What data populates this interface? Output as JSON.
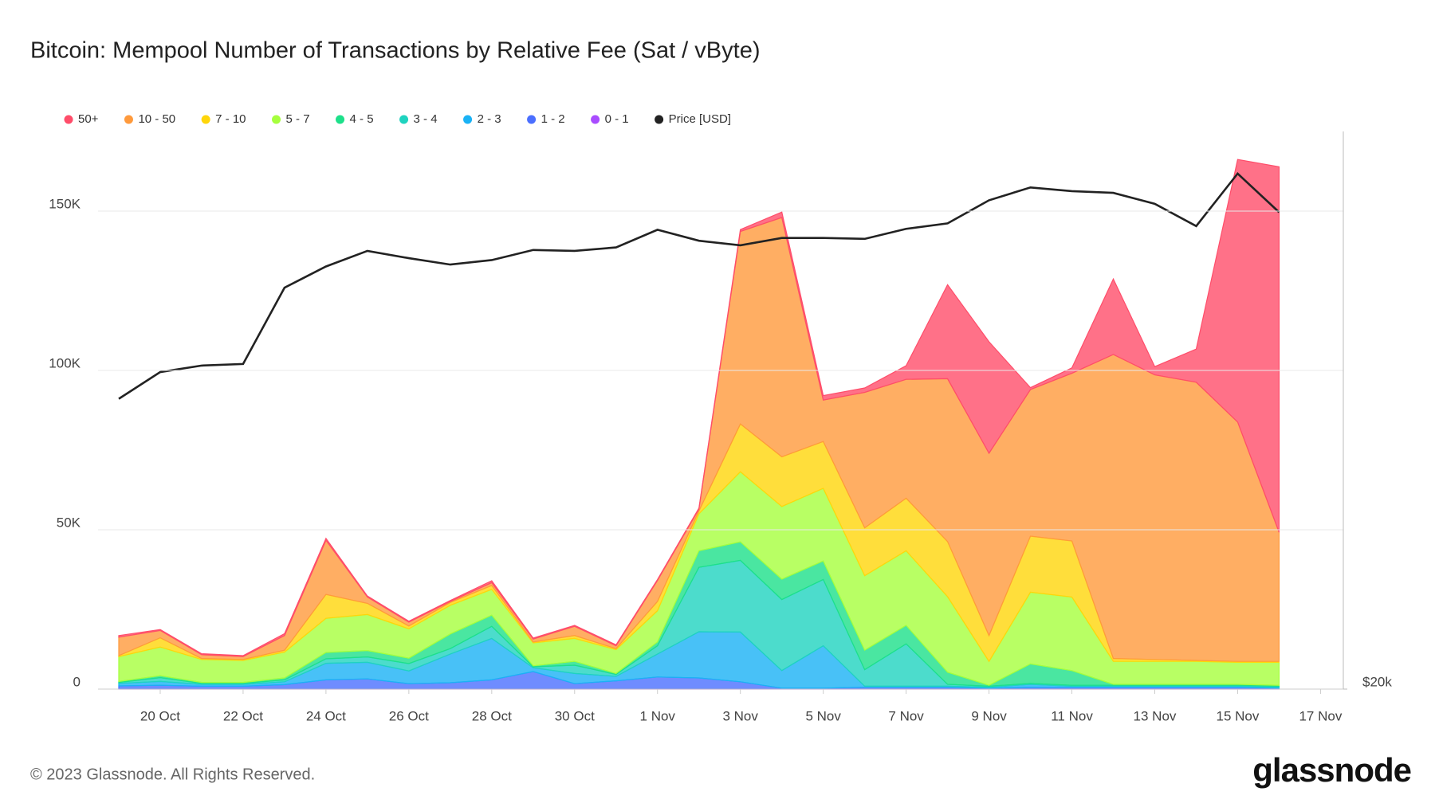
{
  "chart_data": {
    "type": "stacked_area",
    "title": "Bitcoin: Mempool Number of Transactions by Relative Fee (Sat / vByte)",
    "footer": "© 2023 Glassnode. All Rights Reserved.",
    "logo": "glassnode",
    "x": [
      "19 Oct",
      "20 Oct",
      "21 Oct",
      "22 Oct",
      "23 Oct",
      "24 Oct",
      "25 Oct",
      "26 Oct",
      "27 Oct",
      "28 Oct",
      "29 Oct",
      "30 Oct",
      "31 Oct",
      "1 Nov",
      "2 Nov",
      "3 Nov",
      "4 Nov",
      "5 Nov",
      "6 Nov",
      "7 Nov",
      "8 Nov",
      "9 Nov",
      "10 Nov",
      "11 Nov",
      "12 Nov",
      "13 Nov",
      "14 Nov",
      "15 Nov",
      "16 Nov"
    ],
    "xlim": [
      -0.5,
      29.55
    ],
    "xticks": [
      {
        "value": 1,
        "label": "20 Oct"
      },
      {
        "value": 3,
        "label": "22 Oct"
      },
      {
        "value": 5,
        "label": "24 Oct"
      },
      {
        "value": 7,
        "label": "26 Oct"
      },
      {
        "value": 9,
        "label": "28 Oct"
      },
      {
        "value": 11,
        "label": "30 Oct"
      },
      {
        "value": 13,
        "label": "1 Nov"
      },
      {
        "value": 15,
        "label": "3 Nov"
      },
      {
        "value": 17,
        "label": "5 Nov"
      },
      {
        "value": 19,
        "label": "7 Nov"
      },
      {
        "value": 21,
        "label": "9 Nov"
      },
      {
        "value": 23,
        "label": "11 Nov"
      },
      {
        "value": 25,
        "label": "13 Nov"
      },
      {
        "value": 27,
        "label": "15 Nov"
      },
      {
        "value": 29,
        "label": "17 Nov"
      }
    ],
    "ylim": [
      0,
      175000
    ],
    "yticks": [
      0,
      {
        "value": 50000,
        "label": "50K"
      },
      {
        "value": 100000,
        "label": "100K"
      },
      {
        "value": 150000,
        "label": "150K"
      }
    ],
    "y2lim": [
      20000,
      40000
    ],
    "y2scale": "log",
    "y2ticks": [
      {
        "value": 20000,
        "label": "$20k"
      }
    ],
    "grid": true,
    "legend": "top-left",
    "series": [
      {
        "name": "50+",
        "color": "#ff4d6a",
        "values": [
          500,
          300,
          300,
          300,
          600,
          600,
          300,
          300,
          300,
          600,
          300,
          300,
          300,
          300,
          300,
          600,
          1700,
          1400,
          1400,
          4300,
          29500,
          35000,
          600,
          1700,
          23700,
          2600,
          10400,
          82400,
          114700
        ]
      },
      {
        "name": "10 - 50",
        "color": "#ff9a3c",
        "values": [
          5800,
          2300,
          1200,
          900,
          4600,
          17000,
          2000,
          1200,
          300,
          900,
          900,
          2900,
          900,
          6600,
          600,
          60400,
          75100,
          13000,
          42500,
          37300,
          51100,
          57200,
          46000,
          52600,
          95400,
          89300,
          87300,
          75100,
          40500
        ]
      },
      {
        "name": "7 - 10",
        "color": "#ffd60a",
        "values": [
          300,
          2900,
          300,
          300,
          600,
          7500,
          3500,
          900,
          900,
          1200,
          300,
          900,
          300,
          2900,
          900,
          15000,
          15600,
          14700,
          15000,
          16500,
          17300,
          8100,
          17600,
          17600,
          900,
          600,
          300,
          300,
          300
        ]
      },
      {
        "name": "5 - 7",
        "color": "#a6ff3d",
        "values": [
          7800,
          9000,
          7200,
          6900,
          8100,
          10700,
          11300,
          9200,
          9000,
          8100,
          7200,
          7200,
          7500,
          9800,
          11600,
          22000,
          22800,
          22800,
          23400,
          23400,
          23700,
          7500,
          22500,
          23100,
          7200,
          7200,
          7200,
          6900,
          7200
        ]
      },
      {
        "name": "4 - 5",
        "color": "#1de08a",
        "values": [
          300,
          600,
          300,
          300,
          600,
          2000,
          2000,
          1700,
          4600,
          3500,
          300,
          1200,
          300,
          1200,
          5200,
          5800,
          6400,
          5800,
          6100,
          5800,
          3800,
          300,
          6100,
          4600,
          300,
          300,
          300,
          300,
          300
        ]
      },
      {
        "name": "3 - 4",
        "color": "#1fd3bf",
        "values": [
          300,
          1200,
          300,
          300,
          600,
          1400,
          1700,
          2300,
          1700,
          3800,
          300,
          2600,
          600,
          2600,
          20200,
          22500,
          22300,
          20800,
          5200,
          13300,
          600,
          300,
          300,
          300,
          300,
          300,
          300,
          300,
          300
        ]
      },
      {
        "name": "2 - 3",
        "color": "#1ab2f5",
        "values": [
          800,
          1200,
          600,
          600,
          900,
          5200,
          5200,
          4000,
          9000,
          13000,
          1200,
          3200,
          1400,
          7200,
          14500,
          15600,
          5500,
          13300,
          300,
          300,
          300,
          300,
          900,
          300,
          300,
          300,
          300,
          300,
          300
        ]
      },
      {
        "name": "1 - 2",
        "color": "#4b6fff",
        "values": [
          900,
          1100,
          800,
          800,
          1300,
          2800,
          3100,
          1600,
          1900,
          2800,
          5400,
          1600,
          2500,
          3700,
          3400,
          2200,
          200,
          200,
          500,
          500,
          500,
          200,
          500,
          500,
          500,
          500,
          500,
          500,
          200
        ]
      },
      {
        "name": "0 - 1",
        "color": "#a94cff",
        "values": [
          100,
          100,
          100,
          100,
          100,
          100,
          100,
          100,
          100,
          100,
          100,
          100,
          100,
          100,
          100,
          100,
          100,
          100,
          100,
          100,
          100,
          100,
          100,
          100,
          100,
          100,
          100,
          100,
          100
        ]
      },
      {
        "name": "Price [USD]",
        "color": "#222222",
        "axis": "y2",
        "values": [
          28690,
          29660,
          29900,
          29960,
          32940,
          33820,
          34480,
          34170,
          33900,
          34090,
          34520,
          34480,
          34630,
          35400,
          34920,
          34720,
          35040,
          35040,
          35000,
          35440,
          35680,
          36720,
          37310,
          37140,
          37060,
          36560,
          35560,
          37960,
          36180
        ]
      }
    ]
  }
}
